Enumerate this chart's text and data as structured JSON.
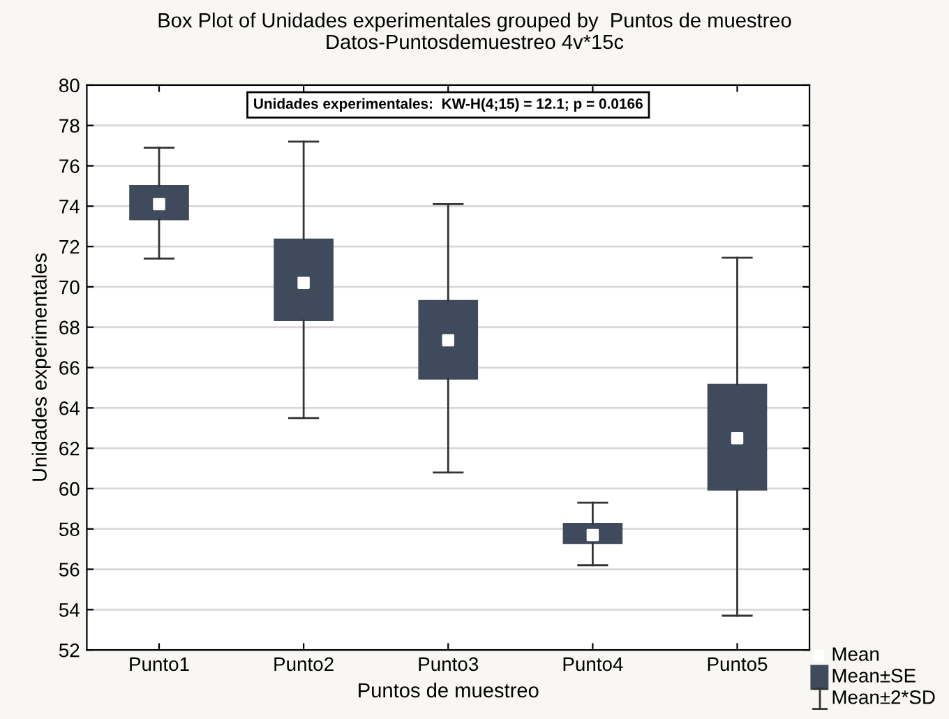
{
  "chart_data": {
    "type": "box",
    "title": "Box Plot of Unidades experimentales grouped by  Puntos de muestreo",
    "subtitle": "Datos-Puntosdemuestreo 4v*15c",
    "xlabel": "Puntos de muestreo",
    "ylabel": "Unidades experimentales",
    "categories": [
      "Punto1",
      "Punto2",
      "Punto3",
      "Punto4",
      "Punto5"
    ],
    "boxes": [
      {
        "low": 71.4,
        "q1": 73.35,
        "median": 74.1,
        "q3": 75.0,
        "high": 76.9
      },
      {
        "low": 63.5,
        "q1": 68.35,
        "median": 70.2,
        "q3": 72.35,
        "high": 77.2
      },
      {
        "low": 60.8,
        "q1": 65.45,
        "median": 67.35,
        "q3": 69.3,
        "high": 74.1
      },
      {
        "low": 56.2,
        "q1": 57.3,
        "median": 57.7,
        "q3": 58.25,
        "high": 59.3
      },
      {
        "low": 53.7,
        "q1": 59.95,
        "median": 62.5,
        "q3": 65.15,
        "high": 71.45
      }
    ],
    "color": "#3f4a5c",
    "ylim": [
      52,
      80
    ],
    "yticks": [
      52,
      54,
      56,
      58,
      60,
      62,
      64,
      66,
      68,
      70,
      72,
      74,
      76,
      78,
      80
    ],
    "grid": "y",
    "annotations": [
      "Unidades experimentales:  KW-H(4;15) = 12.1; p = 0.0166",
      "Mean",
      "Mean±SE",
      "Mean±2*SD"
    ]
  }
}
